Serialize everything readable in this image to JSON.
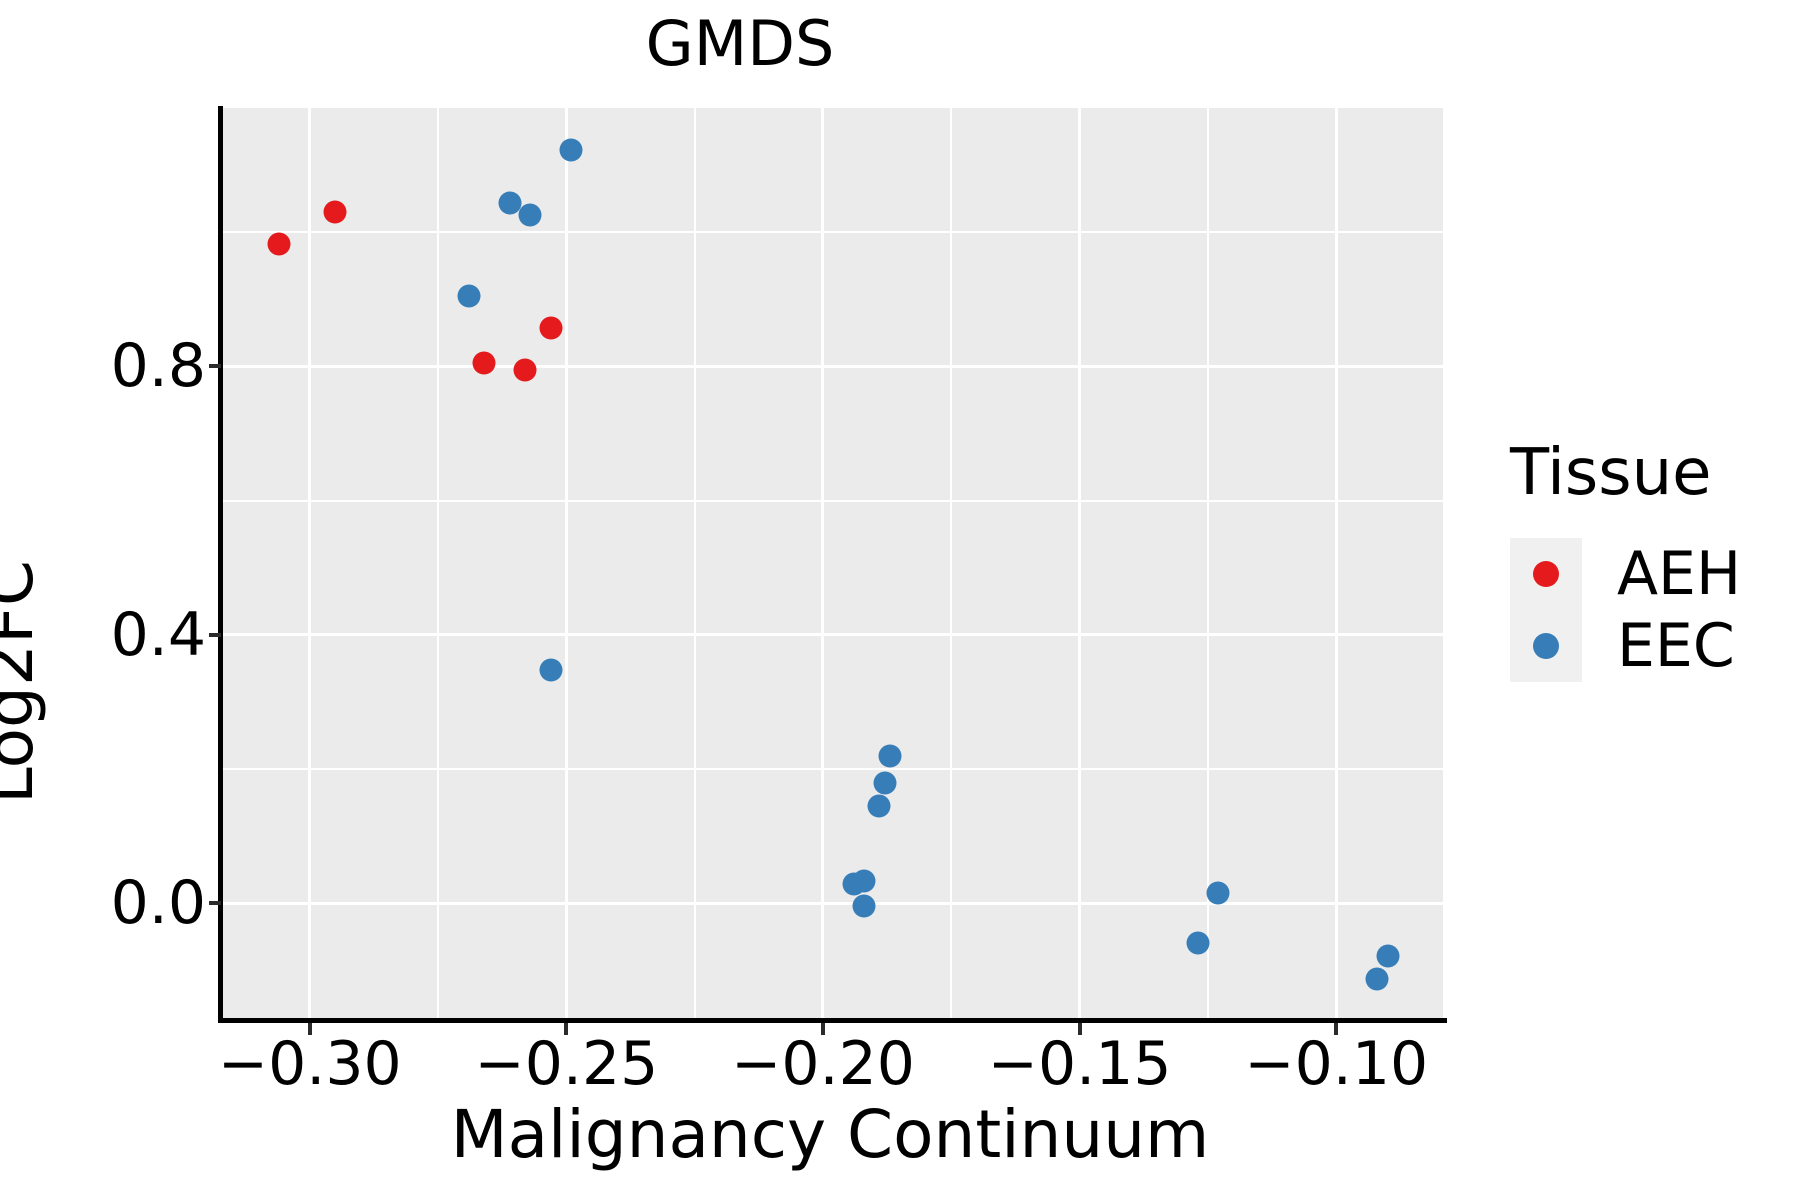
{
  "title": "GMDS",
  "colors": {
    "aeh": "#e41a1c",
    "eec": "#377eb8",
    "panel_background": "#ebebeb",
    "gridline": "#ffffff",
    "legend_key_background": "#f0f0f0",
    "axis_text": "#000000"
  },
  "legend": {
    "title": "Tissue",
    "position": "right",
    "items": [
      {
        "label": "AEH",
        "color": "#e41a1c"
      },
      {
        "label": "EEC",
        "color": "#377eb8"
      }
    ]
  },
  "chart_data": {
    "type": "scatter",
    "title": "GMDS",
    "xlabel": "Malignancy Continuum",
    "ylabel": "Log2FC",
    "xlim": [
      -0.3169,
      -0.0792
    ],
    "ylim": [
      -0.174,
      1.185
    ],
    "grid": true,
    "legend_position": "right",
    "x_ticks": [
      {
        "value": -0.3,
        "label": "−0.30"
      },
      {
        "value": -0.25,
        "label": "−0.25"
      },
      {
        "value": -0.2,
        "label": "−0.20"
      },
      {
        "value": -0.15,
        "label": "−0.15"
      },
      {
        "value": -0.1,
        "label": "−0.10"
      }
    ],
    "y_ticks": [
      {
        "value": 0.0,
        "label": "0.0"
      },
      {
        "value": 0.4,
        "label": "0.4"
      },
      {
        "value": 0.8,
        "label": "0.8"
      }
    ],
    "x_minor_gridlines": [
      -0.275,
      -0.225,
      -0.175,
      -0.125
    ],
    "y_minor_gridlines": [
      0.2,
      0.6,
      1.0
    ],
    "series": [
      {
        "name": "AEH",
        "color": "#e41a1c",
        "points": [
          [
            -0.306,
            0.982
          ],
          [
            -0.295,
            1.03
          ],
          [
            -0.266,
            0.805
          ],
          [
            -0.258,
            0.794
          ],
          [
            -0.253,
            0.857
          ]
        ]
      },
      {
        "name": "EEC",
        "color": "#377eb8",
        "points": [
          [
            -0.249,
            1.123
          ],
          [
            -0.261,
            1.043
          ],
          [
            -0.257,
            1.025
          ],
          [
            -0.269,
            0.905
          ],
          [
            -0.253,
            0.348
          ],
          [
            -0.187,
            0.22
          ],
          [
            -0.188,
            0.179
          ],
          [
            -0.189,
            0.145
          ],
          [
            -0.194,
            0.028
          ],
          [
            -0.192,
            0.033
          ],
          [
            -0.192,
            -0.004
          ],
          [
            -0.123,
            0.015
          ],
          [
            -0.127,
            -0.06
          ],
          [
            -0.09,
            -0.078
          ],
          [
            -0.092,
            -0.113
          ]
        ]
      }
    ]
  }
}
